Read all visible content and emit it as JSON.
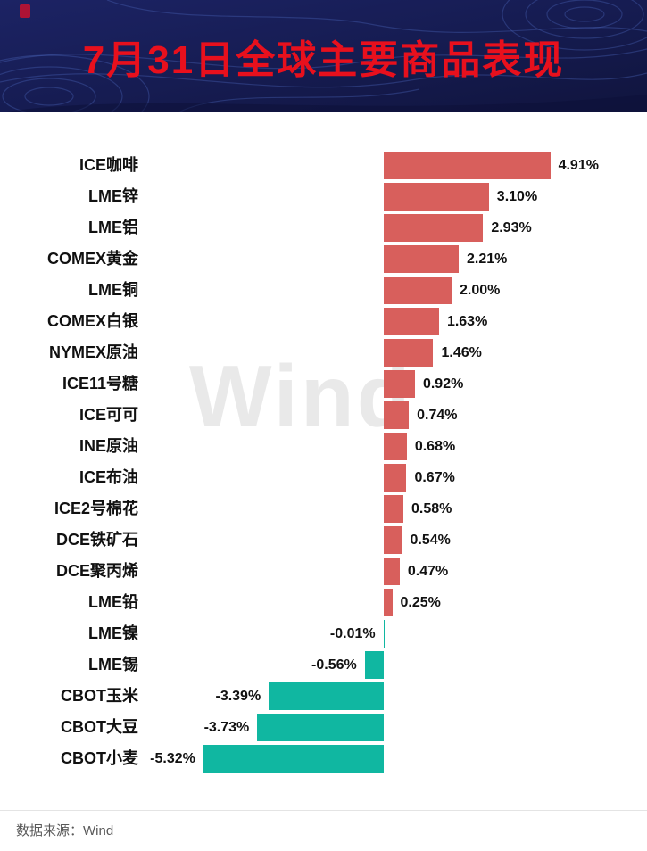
{
  "header": {
    "title": "7月31日全球主要商品表现",
    "title_color": "#e8101d",
    "background_color": "#151b4e"
  },
  "watermark": "Wind",
  "footer": {
    "source": "数据来源：Wind"
  },
  "chart_data": {
    "type": "bar",
    "orientation": "horizontal",
    "title": "7月31日全球主要商品表现",
    "unit": "%",
    "xlabel": "",
    "ylabel": "",
    "xlim": [
      -5.5,
      5.5
    ],
    "grid": false,
    "legend": "none",
    "positive_color": "#d85f5c",
    "negative_color": "#10b7a1",
    "categories": [
      "ICE咖啡",
      "LME锌",
      "LME铝",
      "COMEX黄金",
      "LME铜",
      "COMEX白银",
      "NYMEX原油",
      "ICE11号糖",
      "ICE可可",
      "INE原油",
      "ICE布油",
      "ICE2号棉花",
      "DCE铁矿石",
      "DCE聚丙烯",
      "LME铅",
      "LME镍",
      "LME锡",
      "CBOT玉米",
      "CBOT大豆",
      "CBOT小麦"
    ],
    "values": [
      4.91,
      3.1,
      2.93,
      2.21,
      2.0,
      1.63,
      1.46,
      0.92,
      0.74,
      0.68,
      0.67,
      0.58,
      0.54,
      0.47,
      0.25,
      -0.01,
      -0.56,
      -3.39,
      -3.73,
      -5.32
    ],
    "value_labels": [
      "4.91%",
      "3.10%",
      "2.93%",
      "2.21%",
      "2.00%",
      "1.63%",
      "1.46%",
      "0.92%",
      "0.74%",
      "0.68%",
      "0.67%",
      "0.58%",
      "0.54%",
      "0.47%",
      "0.25%",
      "-0.01%",
      "-0.56%",
      "-3.39%",
      "-3.73%",
      "-5.32%"
    ]
  }
}
